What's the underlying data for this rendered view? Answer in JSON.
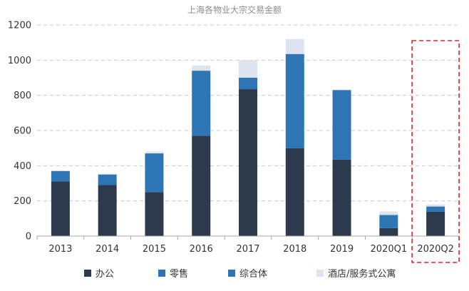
{
  "chart_data": {
    "type": "bar",
    "stacked": true,
    "title": "上海各物业大宗交易金额",
    "xlabel": "",
    "ylabel": "",
    "categories": [
      "2013",
      "2014",
      "2015",
      "2016",
      "2017",
      "2018",
      "2019",
      "2020Q1",
      "2020Q2"
    ],
    "y_ticks": [
      "0",
      "200",
      "400",
      "600",
      "800",
      "1000",
      "1200"
    ],
    "ylim": [
      0,
      1200
    ],
    "grid": true,
    "legend_position": "bottom",
    "highlight_category": "2020Q2",
    "highlight_color": "#d9252b",
    "series": [
      {
        "name": "办公",
        "color": "#2d3a4e",
        "values": [
          310,
          290,
          250,
          570,
          835,
          500,
          435,
          45,
          138
        ]
      },
      {
        "name": "零售",
        "color": "#2e75b6",
        "values": [
          60,
          60,
          220,
          370,
          65,
          535,
          395,
          75,
          30
        ]
      },
      {
        "name": "综合体",
        "color": "#2e75b6",
        "values": [
          0,
          0,
          0,
          0,
          0,
          0,
          0,
          0,
          0
        ]
      },
      {
        "name": "酒店/服务式公寓",
        "color": "#dde4f0",
        "values": [
          0,
          5,
          10,
          30,
          100,
          85,
          0,
          20,
          12
        ]
      }
    ]
  }
}
